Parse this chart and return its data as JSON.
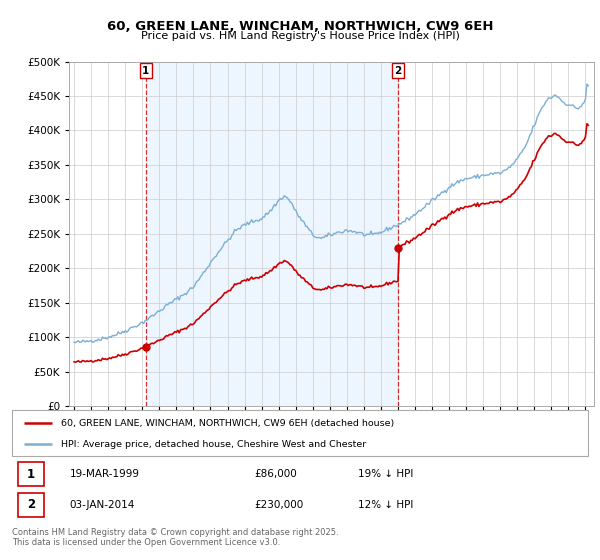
{
  "title": "60, GREEN LANE, WINCHAM, NORTHWICH, CW9 6EH",
  "subtitle": "Price paid vs. HM Land Registry's House Price Index (HPI)",
  "legend_line1": "60, GREEN LANE, WINCHAM, NORTHWICH, CW9 6EH (detached house)",
  "legend_line2": "HPI: Average price, detached house, Cheshire West and Chester",
  "footnote": "Contains HM Land Registry data © Crown copyright and database right 2025.\nThis data is licensed under the Open Government Licence v3.0.",
  "marker1_date": "19-MAR-1999",
  "marker1_price": "£86,000",
  "marker1_hpi": "19% ↓ HPI",
  "marker2_date": "03-JAN-2014",
  "marker2_price": "£230,000",
  "marker2_hpi": "12% ↓ HPI",
  "red_color": "#cc0000",
  "blue_color": "#7bafd4",
  "blue_fill": "#ddeeff",
  "dashed_color": "#cc0000",
  "ylim": [
    0,
    500000
  ],
  "yticks": [
    0,
    50000,
    100000,
    150000,
    200000,
    250000,
    300000,
    350000,
    400000,
    450000,
    500000
  ],
  "ytick_labels": [
    "£0",
    "£50K",
    "£100K",
    "£150K",
    "£200K",
    "£250K",
    "£300K",
    "£350K",
    "£400K",
    "£450K",
    "£500K"
  ],
  "xtick_years": [
    1995,
    1996,
    1997,
    1998,
    1999,
    2000,
    2001,
    2002,
    2003,
    2004,
    2005,
    2006,
    2007,
    2008,
    2009,
    2010,
    2011,
    2012,
    2013,
    2014,
    2015,
    2016,
    2017,
    2018,
    2019,
    2020,
    2021,
    2022,
    2023,
    2024,
    2025
  ],
  "marker1_x": 1999.21,
  "marker1_y": 86000,
  "marker2_x": 2014.01,
  "marker2_y": 230000,
  "xlim_left": 1994.7,
  "xlim_right": 2025.5
}
